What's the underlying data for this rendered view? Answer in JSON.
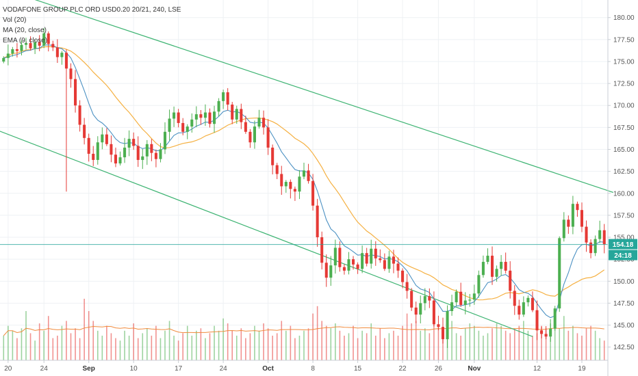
{
  "legend": {
    "title": "VODAFONE GROUP PLC ORD USD0.20 20/21, 240, LSE",
    "vol": "Vol (20)",
    "ma": "MA (20, close)",
    "ema": "EMA (9, close)"
  },
  "badges": {
    "last_price": "154.18",
    "countdown": "24:18"
  },
  "colors": {
    "up": "#4caf50",
    "down": "#e53935",
    "ma": "#f5b041",
    "ema": "#4a90c2",
    "channel": "#3cb371",
    "price_line": "#26a69a",
    "vol_ma": "#f08a3c"
  },
  "chart_data": {
    "type": "candlestick",
    "title": "VODAFONE GROUP PLC ORD USD0.20 20/21, 240, LSE",
    "y_ticks": [
      "180.00",
      "177.50",
      "175.00",
      "172.50",
      "170.00",
      "167.50",
      "165.00",
      "162.50",
      "160.00",
      "157.50",
      "155.00",
      "152.50",
      "150.00",
      "147.50",
      "145.00",
      "142.50"
    ],
    "y_tick_values": [
      180,
      177.5,
      175,
      172.5,
      170,
      167.5,
      165,
      162.5,
      160,
      157.5,
      155,
      152.5,
      150,
      147.5,
      145,
      142.5
    ],
    "ylim": [
      141,
      182
    ],
    "x_ticks": [
      {
        "label": "20",
        "bold": false,
        "index": 1
      },
      {
        "label": "24",
        "bold": false,
        "index": 9
      },
      {
        "label": "Sep",
        "bold": true,
        "index": 19
      },
      {
        "label": "10",
        "bold": false,
        "index": 29
      },
      {
        "label": "17",
        "bold": false,
        "index": 39
      },
      {
        "label": "24",
        "bold": false,
        "index": 49
      },
      {
        "label": "Oct",
        "bold": true,
        "index": 59
      },
      {
        "label": "8",
        "bold": false,
        "index": 69
      },
      {
        "label": "15",
        "bold": false,
        "index": 79
      },
      {
        "label": "22",
        "bold": false,
        "index": 89
      },
      {
        "label": "26",
        "bold": false,
        "index": 97
      },
      {
        "label": "Nov",
        "bold": true,
        "index": 105
      },
      {
        "label": "12",
        "bold": false,
        "index": 119
      },
      {
        "label": "19",
        "bold": false,
        "index": 129
      }
    ],
    "close": [
      175.4,
      175.9,
      176.4,
      176.2,
      176.9,
      177.1,
      176.5,
      177.2,
      176.8,
      178.2,
      177.0,
      176.6,
      175.5,
      176.0,
      174.2,
      173.0,
      170.0,
      167.8,
      166.3,
      164.5,
      163.8,
      165.8,
      166.7,
      165.6,
      164.4,
      163.4,
      164.1,
      165.2,
      166.2,
      165.4,
      163.8,
      164.2,
      165.6,
      164.6,
      163.9,
      165.0,
      167.0,
      168.5,
      169.2,
      168.0,
      167.0,
      167.6,
      168.4,
      169.0,
      168.6,
      169.2,
      167.9,
      169.3,
      170.5,
      171.5,
      170.1,
      168.4,
      169.6,
      168.1,
      167.0,
      165.8,
      167.6,
      168.6,
      167.5,
      165.2,
      163.2,
      162.2,
      160.8,
      161.3,
      160.5,
      160.2,
      161.9,
      162.6,
      161.4,
      158.6,
      155.0,
      152.1,
      150.4,
      151.8,
      153.8,
      151.6,
      151.2,
      152.5,
      151.9,
      151.4,
      153.2,
      152.0,
      153.7,
      152.6,
      152.4,
      151.4,
      152.8,
      152.0,
      151.2,
      149.9,
      148.9,
      147.0,
      146.2,
      147.5,
      148.3,
      147.8,
      145.1,
      144.8,
      143.4,
      146.6,
      147.6,
      148.8,
      147.3,
      147.8,
      147.9,
      148.6,
      150.7,
      152.2,
      152.9,
      150.5,
      151.4,
      152.2,
      151.2,
      148.9,
      147.2,
      146.2,
      147.6,
      148.1,
      146.7,
      144.4,
      144.0,
      143.7,
      144.6,
      146.9,
      154.9,
      157.0,
      156.2,
      158.8,
      158.1,
      156.2,
      154.4,
      153.2,
      154.8,
      155.8,
      154.2
    ],
    "volume": [
      10,
      14,
      12,
      9,
      13,
      20,
      11,
      8,
      15,
      12,
      18,
      9,
      10,
      14,
      16,
      11,
      13,
      9,
      25,
      20,
      16,
      12,
      10,
      14,
      11,
      9,
      8,
      12,
      10,
      15,
      9,
      11,
      13,
      10,
      14,
      9,
      12,
      16,
      10,
      8,
      11,
      14,
      10,
      12,
      13,
      9,
      11,
      14,
      12,
      17,
      15,
      12,
      10,
      13,
      9,
      11,
      14,
      12,
      15,
      13,
      10,
      11,
      16,
      12,
      14,
      9,
      10,
      12,
      13,
      19,
      22,
      16,
      14,
      13,
      15,
      12,
      10,
      11,
      14,
      9,
      12,
      11,
      15,
      10,
      13,
      9,
      11,
      12,
      10,
      14,
      19,
      15,
      16,
      12,
      13,
      11,
      17,
      14,
      13,
      12,
      16,
      11,
      10,
      13,
      15,
      14,
      12,
      10,
      11,
      13,
      15,
      14,
      12,
      11,
      13,
      14,
      16,
      12,
      10,
      11,
      14,
      13,
      15,
      16,
      13,
      18,
      12,
      14,
      11,
      10,
      13,
      14,
      12,
      9,
      8
    ],
    "channel": {
      "upper": [
        {
          "x_index": -1,
          "y": 183.4
        },
        {
          "x_index": 136,
          "y": 160.1
        }
      ],
      "lower": [
        {
          "x_index": -1,
          "y": 167.1
        },
        {
          "x_index": 118,
          "y": 143.7
        }
      ]
    },
    "last_price": 154.18
  }
}
